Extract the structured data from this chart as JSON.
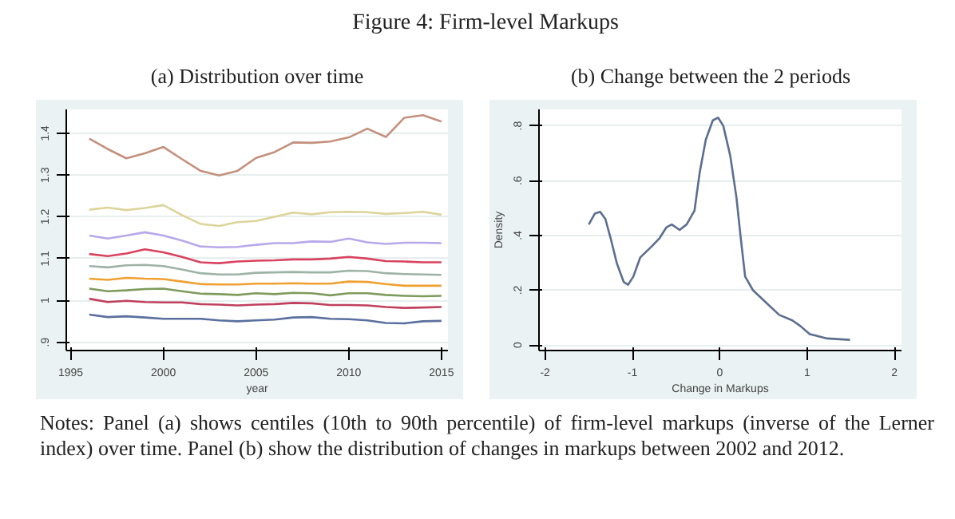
{
  "chart_data": [
    {
      "type": "line",
      "title": "Figure 4: Firm-level Markups",
      "subtitle": "(a) Distribution over time",
      "xlabel": "year",
      "x": [
        1996,
        1997,
        1998,
        1999,
        2000,
        2001,
        2002,
        2003,
        2004,
        2005,
        2006,
        2007,
        2008,
        2009,
        2010,
        2011,
        2012,
        2013,
        2014,
        2015
      ],
      "xlim": [
        1994.76,
        2015.35
      ],
      "xticks": [
        1995,
        2000,
        2005,
        2010,
        2015
      ],
      "ylim": [
        0.88,
        1.457
      ],
      "yticks": [
        {
          "value": 0.9,
          "label": ".9"
        },
        1,
        1.1,
        1.2,
        1.3,
        1.4
      ],
      "grid": "y",
      "marker": "none",
      "line_style": "solid",
      "series": [
        {
          "color": "#c4907c",
          "values": [
            1.387,
            1.362,
            1.34,
            1.352,
            1.367,
            1.338,
            1.31,
            1.299,
            1.31,
            1.341,
            1.355,
            1.378,
            1.377,
            1.38,
            1.39,
            1.411,
            1.391,
            1.437,
            1.443,
            1.428
          ]
        },
        {
          "color": "#ddd49a",
          "values": [
            1.217,
            1.222,
            1.216,
            1.221,
            1.228,
            1.204,
            1.183,
            1.178,
            1.187,
            1.19,
            1.2,
            1.21,
            1.206,
            1.211,
            1.212,
            1.211,
            1.207,
            1.209,
            1.212,
            1.205
          ]
        },
        {
          "color": "#b8a8ea",
          "values": [
            1.155,
            1.148,
            1.155,
            1.163,
            1.155,
            1.143,
            1.129,
            1.127,
            1.128,
            1.133,
            1.137,
            1.137,
            1.141,
            1.14,
            1.148,
            1.139,
            1.135,
            1.138,
            1.138,
            1.137
          ]
        },
        {
          "color": "#d9435f",
          "values": [
            1.111,
            1.106,
            1.112,
            1.122,
            1.115,
            1.104,
            1.091,
            1.089,
            1.093,
            1.095,
            1.096,
            1.098,
            1.098,
            1.1,
            1.104,
            1.1,
            1.094,
            1.093,
            1.091,
            1.091
          ]
        },
        {
          "color": "#9db3a6",
          "values": [
            1.082,
            1.079,
            1.084,
            1.085,
            1.082,
            1.074,
            1.065,
            1.062,
            1.062,
            1.066,
            1.067,
            1.068,
            1.067,
            1.067,
            1.071,
            1.07,
            1.065,
            1.063,
            1.062,
            1.061
          ]
        },
        {
          "color": "#f0a030",
          "values": [
            1.052,
            1.049,
            1.054,
            1.052,
            1.051,
            1.045,
            1.039,
            1.038,
            1.038,
            1.04,
            1.04,
            1.041,
            1.04,
            1.04,
            1.045,
            1.044,
            1.039,
            1.035,
            1.035,
            1.035
          ]
        },
        {
          "color": "#7d9b5c",
          "values": [
            1.028,
            1.022,
            1.024,
            1.027,
            1.028,
            1.022,
            1.016,
            1.015,
            1.013,
            1.017,
            1.015,
            1.018,
            1.017,
            1.012,
            1.017,
            1.017,
            1.013,
            1.011,
            1.01,
            1.011
          ]
        },
        {
          "color": "#c0405e",
          "values": [
            1.004,
            0.996,
            0.999,
            0.996,
            0.995,
            0.995,
            0.991,
            0.99,
            0.988,
            0.99,
            0.991,
            0.994,
            0.993,
            0.989,
            0.989,
            0.988,
            0.984,
            0.982,
            0.983,
            0.984
          ]
        },
        {
          "color": "#5a6f9e",
          "values": [
            0.966,
            0.96,
            0.962,
            0.959,
            0.956,
            0.956,
            0.956,
            0.952,
            0.95,
            0.952,
            0.954,
            0.959,
            0.96,
            0.956,
            0.955,
            0.952,
            0.946,
            0.945,
            0.95,
            0.951
          ]
        }
      ]
    },
    {
      "type": "line",
      "title": "(b) Change between the 2 periods",
      "xlabel": "Change in Markups",
      "ylabel": "Density",
      "xlim": [
        -2.07,
        2.08
      ],
      "xticks": [
        -2,
        -1,
        0,
        1,
        2
      ],
      "ylim": [
        -0.02,
        0.86
      ],
      "yticks": [
        0,
        {
          "value": 0.2,
          "label": ".2"
        },
        {
          "value": 0.4,
          "label": ".4"
        },
        {
          "value": 0.6,
          "label": ".6"
        },
        {
          "value": 0.8,
          "label": ".8"
        }
      ],
      "grid": "y",
      "marker": "none",
      "line_style": "solid",
      "annotations": [
        "Notes: Panel (a) shows centiles (10th to 90th percentile) of firm-level markups (inverse of the Lerner index) over time. Panel (b) show the distribution of changes in markups between 2002 and 2012."
      ],
      "series": [
        {
          "color": "#5b6e8f",
          "x": [
            -1.5,
            -1.43,
            -1.37,
            -1.31,
            -1.25,
            -1.18,
            -1.1,
            -1.05,
            -0.99,
            -0.91,
            -0.78,
            -0.69,
            -0.61,
            -0.55,
            -0.46,
            -0.38,
            -0.29,
            -0.23,
            -0.16,
            -0.08,
            -0.02,
            0.04,
            0.12,
            0.19,
            0.24,
            0.29,
            0.38,
            0.53,
            0.68,
            0.83,
            0.92,
            1.03,
            1.23,
            1.49
          ],
          "values": [
            0.44,
            0.48,
            0.486,
            0.46,
            0.39,
            0.3,
            0.23,
            0.22,
            0.25,
            0.32,
            0.36,
            0.39,
            0.43,
            0.44,
            0.42,
            0.44,
            0.49,
            0.63,
            0.75,
            0.82,
            0.83,
            0.8,
            0.69,
            0.54,
            0.39,
            0.25,
            0.2,
            0.155,
            0.11,
            0.09,
            0.07,
            0.04,
            0.024,
            0.019
          ]
        }
      ]
    }
  ]
}
